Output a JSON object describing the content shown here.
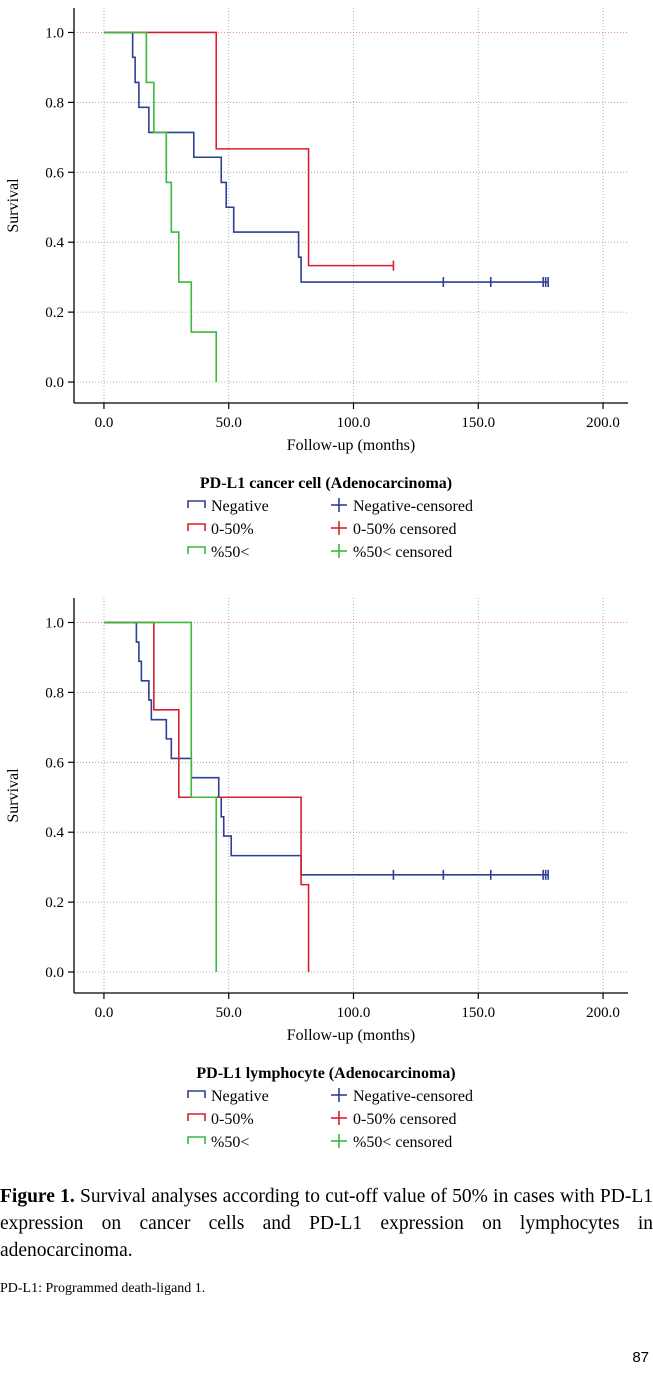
{
  "chart_data": [
    {
      "type": "line",
      "step": true,
      "title": "PD-L1 cancer cell (Adenocarcinoma)",
      "xlabel": "Follow-up (months)",
      "ylabel": "Survival",
      "xlim": [
        -12,
        210
      ],
      "ylim": [
        -0.06,
        1.07
      ],
      "xticks": [
        "0.0",
        "50.0",
        "100.0",
        "150.0",
        "200.0"
      ],
      "yticks": [
        "0.0",
        "0.2",
        "0.4",
        "0.6",
        "0.8",
        "1.0"
      ],
      "grid": true,
      "reference_line": 1.0,
      "series": [
        {
          "name": "Negative",
          "color": "#2e3f96",
          "points": [
            [
              0,
              1.0
            ],
            [
              11.5,
              0.929
            ],
            [
              12.5,
              0.857
            ],
            [
              14,
              0.786
            ],
            [
              18,
              0.714
            ],
            [
              36,
              0.643
            ],
            [
              47,
              0.571
            ],
            [
              49,
              0.5
            ],
            [
              52,
              0.429
            ],
            [
              78,
              0.357
            ],
            [
              79,
              0.286
            ],
            [
              178,
              0.286
            ]
          ],
          "censored": [
            [
              136,
              0.286
            ],
            [
              155,
              0.286
            ],
            [
              176,
              0.286
            ],
            [
              177,
              0.286
            ],
            [
              178,
              0.286
            ]
          ],
          "censored_label": "Negative-censored"
        },
        {
          "name": "0-50%",
          "color": "#d7202f",
          "points": [
            [
              0,
              1.0
            ],
            [
              45,
              0.667
            ],
            [
              82,
              0.333
            ],
            [
              116,
              0.333
            ]
          ],
          "censored": [
            [
              116,
              0.333
            ]
          ],
          "censored_label": "0-50% censored"
        },
        {
          "name": "%50<",
          "color": "#3cb83c",
          "points": [
            [
              0,
              1.0
            ],
            [
              17,
              0.857
            ],
            [
              20,
              0.714
            ],
            [
              25,
              0.571
            ],
            [
              27,
              0.429
            ],
            [
              30,
              0.286
            ],
            [
              35,
              0.143
            ],
            [
              45,
              0.0
            ]
          ],
          "censored": [],
          "censored_label": "%50< censored"
        }
      ]
    },
    {
      "type": "line",
      "step": true,
      "title": "PD-L1 lymphocyte (Adenocarcinoma)",
      "xlabel": "Follow-up (months)",
      "ylabel": "Survival",
      "xlim": [
        -12,
        210
      ],
      "ylim": [
        -0.06,
        1.07
      ],
      "xticks": [
        "0.0",
        "50.0",
        "100.0",
        "150.0",
        "200.0"
      ],
      "yticks": [
        "0.0",
        "0.2",
        "0.4",
        "0.6",
        "0.8",
        "1.0"
      ],
      "grid": true,
      "reference_line": 1.0,
      "series": [
        {
          "name": "Negative",
          "color": "#2e3f96",
          "points": [
            [
              0,
              1.0
            ],
            [
              13,
              0.944
            ],
            [
              14,
              0.889
            ],
            [
              15,
              0.833
            ],
            [
              18,
              0.778
            ],
            [
              19,
              0.722
            ],
            [
              25,
              0.667
            ],
            [
              27,
              0.611
            ],
            [
              35,
              0.556
            ],
            [
              46,
              0.5
            ],
            [
              47,
              0.444
            ],
            [
              48,
              0.389
            ],
            [
              51,
              0.333
            ],
            [
              79,
              0.278
            ],
            [
              178,
              0.278
            ]
          ],
          "censored": [
            [
              116,
              0.278
            ],
            [
              136,
              0.278
            ],
            [
              155,
              0.278
            ],
            [
              176,
              0.278
            ],
            [
              177,
              0.278
            ],
            [
              178,
              0.278
            ]
          ],
          "censored_label": "Negative-censored"
        },
        {
          "name": "0-50%",
          "color": "#d7202f",
          "points": [
            [
              0,
              1.0
            ],
            [
              20,
              0.75
            ],
            [
              30,
              0.5
            ],
            [
              79,
              0.25
            ],
            [
              82,
              0.0
            ]
          ],
          "censored": [],
          "censored_label": "0-50% censored"
        },
        {
          "name": "%50<",
          "color": "#3cb83c",
          "points": [
            [
              0,
              1.0
            ],
            [
              35,
              0.5
            ],
            [
              45,
              0.0
            ]
          ],
          "censored": [],
          "censored_label": "%50< censored"
        }
      ]
    }
  ],
  "caption": {
    "label": "Figure 1.",
    "text": " Survival analyses according to cut-off value of 50% in cases with PD-L1 expression on cancer cells and PD-L1 expression on lymphocytes in adenocarcinoma."
  },
  "footnote": "PD-L1: Programmed death-ligand 1.",
  "page_number": "87"
}
